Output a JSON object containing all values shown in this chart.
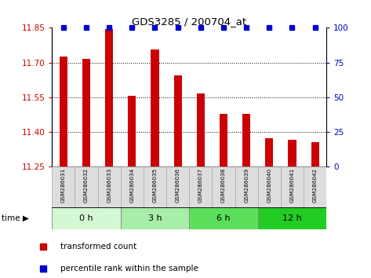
{
  "title": "GDS3285 / 200704_at",
  "samples": [
    "GSM286031",
    "GSM286032",
    "GSM286033",
    "GSM286034",
    "GSM286035",
    "GSM286036",
    "GSM286037",
    "GSM286038",
    "GSM286039",
    "GSM286040",
    "GSM286041",
    "GSM286042"
  ],
  "bar_values": [
    11.725,
    11.715,
    11.845,
    11.555,
    11.755,
    11.645,
    11.565,
    11.48,
    11.48,
    11.375,
    11.365,
    11.355
  ],
  "percentile_values": [
    100,
    100,
    100,
    100,
    100,
    100,
    100,
    100,
    100,
    100,
    100,
    100
  ],
  "bar_color": "#cc0000",
  "percentile_color": "#0000cc",
  "ylim_left": [
    11.25,
    11.85
  ],
  "ylim_right": [
    0,
    100
  ],
  "yticks_left": [
    11.25,
    11.4,
    11.55,
    11.7,
    11.85
  ],
  "yticks_right": [
    0,
    25,
    50,
    75,
    100
  ],
  "groups": [
    {
      "label": "0 h",
      "start": 0,
      "end": 3,
      "color": "#d4f7d4"
    },
    {
      "label": "3 h",
      "start": 3,
      "end": 6,
      "color": "#a8eda8"
    },
    {
      "label": "6 h",
      "start": 6,
      "end": 9,
      "color": "#5ce05c"
    },
    {
      "label": "12 h",
      "start": 9,
      "end": 12,
      "color": "#22cc22"
    }
  ],
  "baseline": 11.25,
  "legend_bar_label": "transformed count",
  "legend_pct_label": "percentile rank within the sample",
  "time_label": "time",
  "bg_color": "#ffffff",
  "grid_color": "#000000",
  "tick_label_color_left": "#cc0000",
  "tick_label_color_right": "#0000cc",
  "label_bg": "#dddddd",
  "label_edge": "#aaaaaa"
}
